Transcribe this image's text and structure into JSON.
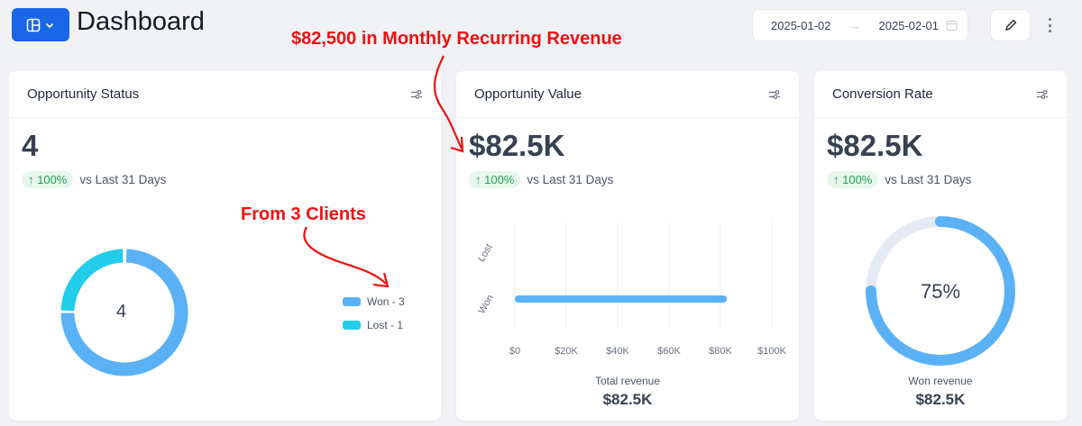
{
  "header": {
    "title": "Dashboard",
    "date_start": "2025-01-02",
    "date_end": "2025-02-01"
  },
  "cards": {
    "status": {
      "title": "Opportunity Status",
      "value": "4",
      "delta": "↑ 100%",
      "delta_label": "vs Last 31 Days",
      "center": "4",
      "legend": [
        {
          "label": "Won - 3",
          "value": 3,
          "color": "#5ab1f6"
        },
        {
          "label": "Lost - 1",
          "value": 1,
          "color": "#22cdea"
        }
      ]
    },
    "value": {
      "title": "Opportunity Value",
      "value": "$82.5K",
      "delta": "↑ 100%",
      "delta_label": "vs Last 31 Days",
      "footer_label": "Total revenue",
      "footer_value": "$82.5K"
    },
    "conversion": {
      "title": "Conversion Rate",
      "value": "$82.5K",
      "delta": "↑ 100%",
      "delta_label": "vs Last 31 Days",
      "gauge_label": "75%",
      "gauge_fraction": 0.75,
      "footer_label": "Won revenue",
      "footer_value": "$82.5K"
    }
  },
  "chart_data": {
    "type": "bar",
    "orientation": "horizontal",
    "categories": [
      "Lost",
      "Won"
    ],
    "values": [
      0,
      82500
    ],
    "xlim": [
      0,
      100000
    ],
    "xticks": [
      "$0",
      "$20K",
      "$40K",
      "$60K",
      "$80K",
      "$100K"
    ],
    "xlabel": "Total revenue",
    "color": "#5ab1f6"
  },
  "annotations": {
    "mrr": "$82,500 in Monthly Recurring Revenue",
    "clients": "From 3 Clients"
  }
}
